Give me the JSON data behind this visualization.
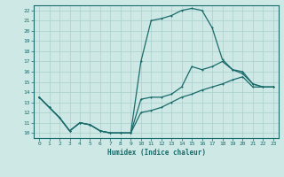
{
  "title": "",
  "xlabel": "Humidex (Indice chaleur)",
  "xlim": [
    -0.5,
    23.5
  ],
  "ylim": [
    9.5,
    22.5
  ],
  "xticks": [
    0,
    1,
    2,
    3,
    4,
    5,
    6,
    7,
    8,
    9,
    10,
    11,
    12,
    13,
    14,
    15,
    16,
    17,
    18,
    19,
    20,
    21,
    22,
    23
  ],
  "yticks": [
    10,
    11,
    12,
    13,
    14,
    15,
    16,
    17,
    18,
    19,
    20,
    21,
    22
  ],
  "background_color": "#cde8e5",
  "grid_color": "#aacfcc",
  "line_color": "#1a6b6b",
  "line1_x": [
    0,
    1,
    2,
    3,
    4,
    5,
    6,
    7,
    8,
    9,
    10,
    11,
    12,
    13,
    14,
    15,
    16,
    17,
    18,
    19,
    20,
    21,
    22,
    23
  ],
  "line1_y": [
    13.5,
    12.5,
    11.5,
    10.2,
    11.0,
    10.8,
    10.2,
    10.0,
    10.0,
    10.0,
    17.0,
    21.0,
    21.2,
    21.5,
    22.0,
    22.2,
    22.0,
    20.3,
    17.2,
    16.2,
    15.8,
    14.8,
    14.5,
    14.5
  ],
  "line2_x": [
    0,
    1,
    2,
    3,
    4,
    5,
    6,
    7,
    8,
    9,
    10,
    11,
    12,
    13,
    14,
    15,
    16,
    17,
    18,
    19,
    20,
    21,
    22,
    23
  ],
  "line2_y": [
    13.5,
    12.5,
    11.5,
    10.2,
    11.0,
    10.8,
    10.2,
    10.0,
    10.0,
    10.0,
    13.3,
    13.5,
    13.5,
    13.8,
    14.5,
    16.5,
    16.2,
    16.5,
    17.0,
    16.2,
    16.0,
    14.8,
    14.5,
    14.5
  ],
  "line3_x": [
    0,
    1,
    2,
    3,
    4,
    5,
    6,
    7,
    8,
    9,
    10,
    11,
    12,
    13,
    14,
    15,
    16,
    17,
    18,
    19,
    20,
    21,
    22,
    23
  ],
  "line3_y": [
    13.5,
    12.5,
    11.5,
    10.2,
    11.0,
    10.8,
    10.2,
    10.0,
    10.0,
    10.0,
    12.0,
    12.2,
    12.5,
    13.0,
    13.5,
    13.8,
    14.2,
    14.5,
    14.8,
    15.2,
    15.5,
    14.5,
    14.5,
    14.5
  ]
}
